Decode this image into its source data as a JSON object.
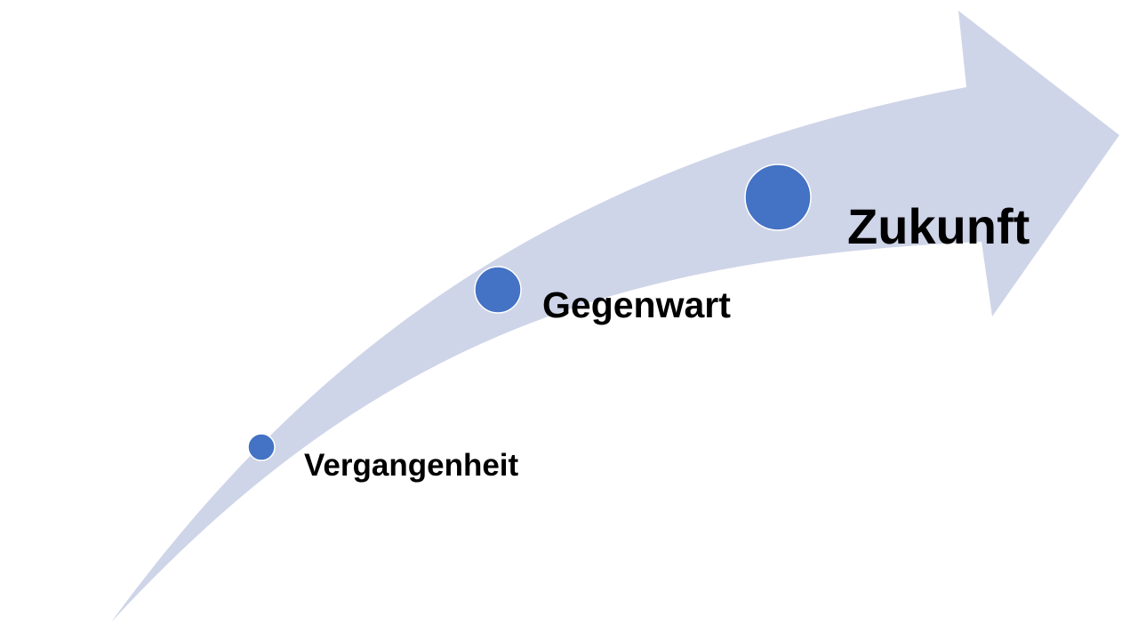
{
  "timeline": {
    "colors": {
      "arrow": "#cfd5e8",
      "dot": "#4472c4",
      "dot_outline": "#ffffff",
      "text": "#000000"
    },
    "stages": [
      {
        "label": "Vergangenheit"
      },
      {
        "label": "Gegenwart"
      },
      {
        "label": "Zukunft"
      }
    ]
  }
}
